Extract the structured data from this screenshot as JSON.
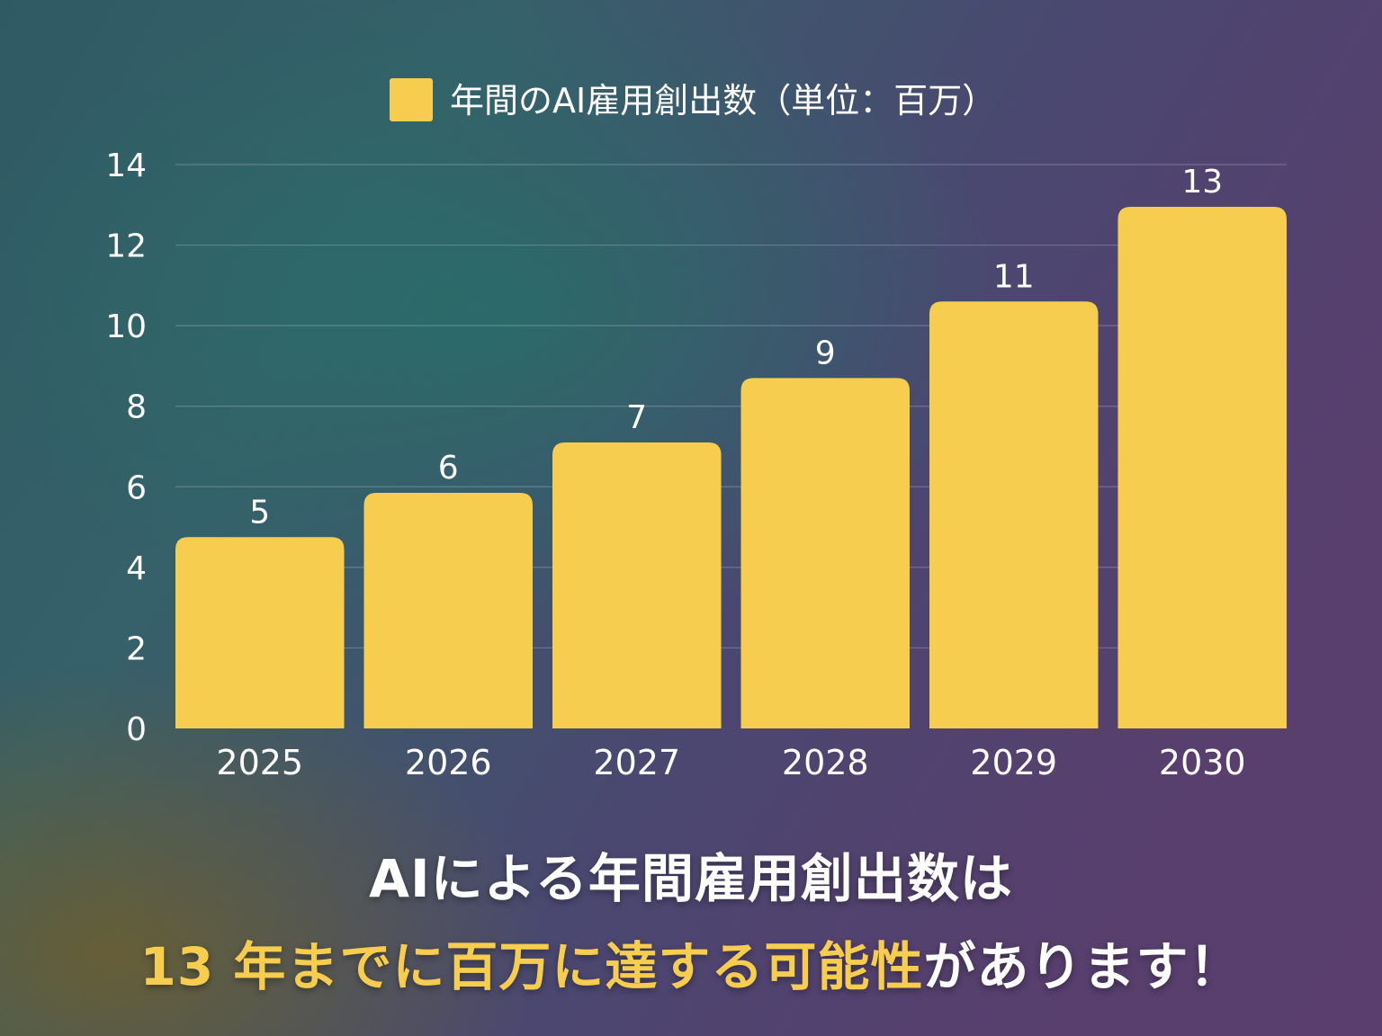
{
  "chart_data": {
    "type": "bar",
    "title": "",
    "legend": [
      {
        "label": "年間のAI雇用創出数（単位：百万）",
        "color": "#f7cd4f"
      }
    ],
    "legend_position": "top-center",
    "categories": [
      "2025",
      "2026",
      "2027",
      "2028",
      "2029",
      "2030"
    ],
    "values": [
      4.75,
      5.85,
      7.1,
      8.7,
      10.6,
      12.95
    ],
    "data_labels": [
      "5",
      "6",
      "7",
      "9",
      "11",
      "13"
    ],
    "yticks": [
      "0",
      "2",
      "4",
      "6",
      "8",
      "10",
      "12",
      "14"
    ],
    "ylim": [
      0,
      14
    ],
    "grid": true,
    "bar_color": "#f7cd4f"
  },
  "caption": {
    "line1": "AIによる年間雇用創出数は",
    "line2_highlight": "13 年までに百万に達する可能性",
    "line2_rest": "があります！"
  }
}
